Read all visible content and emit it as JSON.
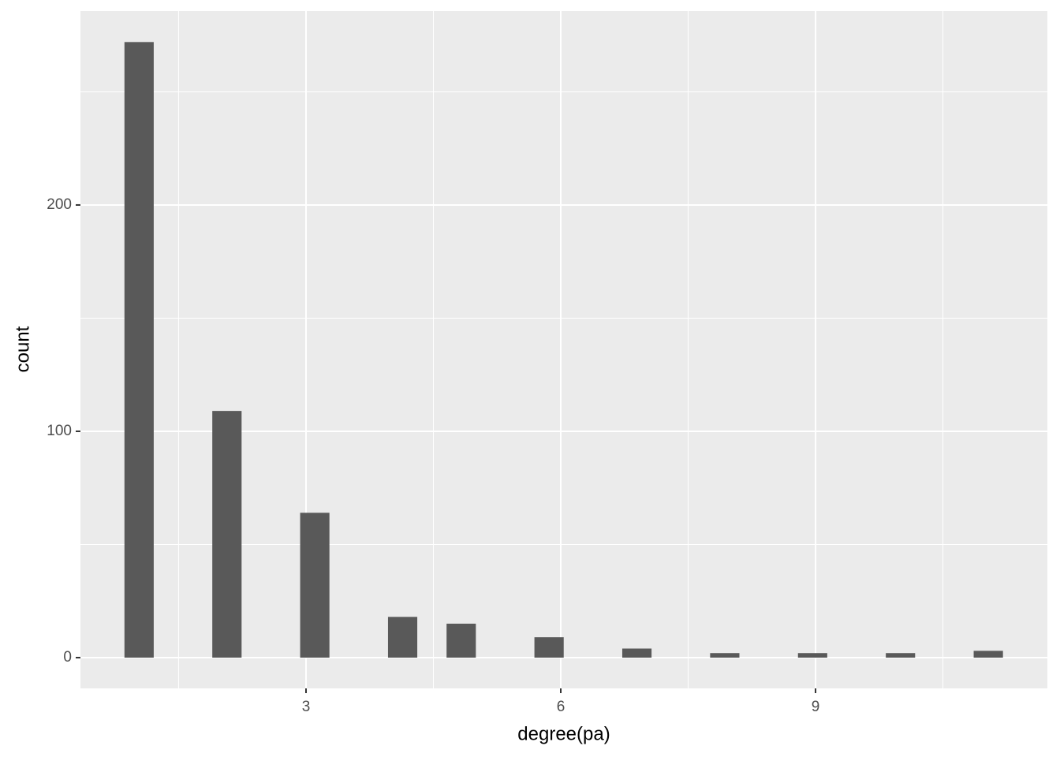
{
  "chart_data": {
    "type": "histogram",
    "x_label": "degree(pa)",
    "y_label": "count",
    "bins": [
      0.8621,
      1.2069,
      1.5517,
      1.8966,
      2.2414,
      2.5862,
      2.931,
      3.2759,
      3.6207,
      3.9655,
      4.3103,
      4.6552,
      5.0,
      5.3448,
      5.6897,
      6.0345,
      6.3793,
      6.7241,
      7.069,
      7.4138,
      7.7586,
      8.1034,
      8.4483,
      8.7931,
      9.1379,
      9.4828,
      9.8276,
      10.1724,
      10.5172,
      10.8621,
      11.2069
    ],
    "values": [
      272,
      0,
      0,
      109,
      0,
      0,
      64,
      0,
      0,
      18,
      0,
      15,
      0,
      0,
      9,
      0,
      0,
      4,
      0,
      0,
      2,
      0,
      0,
      2,
      0,
      0,
      2,
      0,
      0,
      3
    ],
    "color": "#595959",
    "xlim": [
      0.344,
      11.73
    ],
    "xticks": [
      3,
      6,
      9
    ],
    "ylim": [
      -13.6,
      285.7
    ],
    "yticks": [
      0,
      100,
      200
    ],
    "grid": true
  }
}
